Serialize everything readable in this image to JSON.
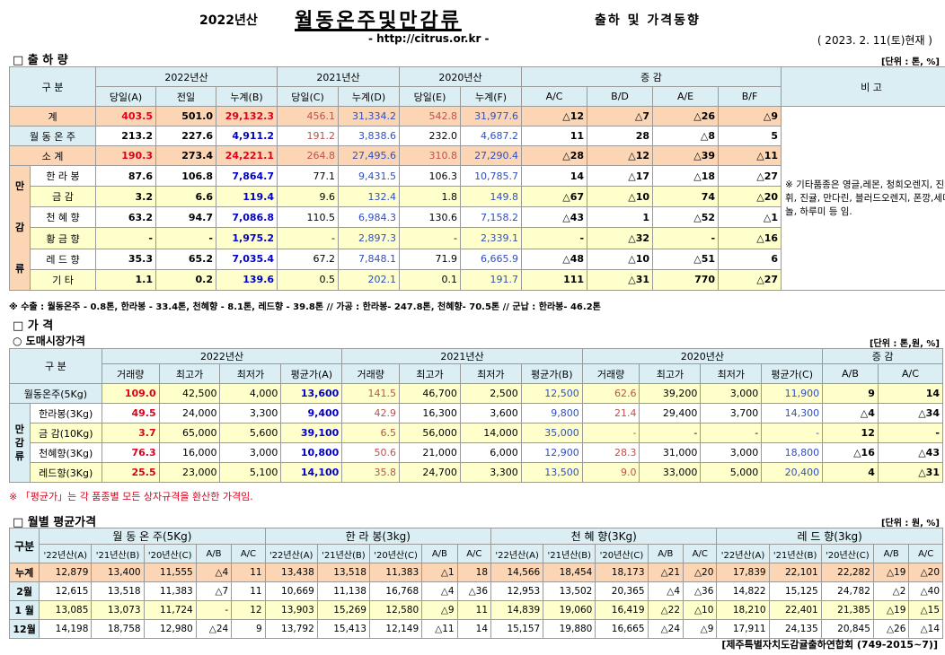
{
  "header": {
    "year": "2022년산",
    "title": "월동온주및만감류",
    "subtitle": "출하 및 가격동향",
    "url": "- http://citrus.or.kr -",
    "date": "( 2023. 2. 11(토)현재 )"
  },
  "shipment": {
    "section": "□ 출 하 량",
    "unit": "[단위 : 톤, %]",
    "div_label": "구   분",
    "h2022": "2022년산",
    "h2021": "2021년산",
    "h2020": "2020년산",
    "hinc": "증     감",
    "hnote": "비 고",
    "cols": [
      "당일(A)",
      "전일",
      "누계(B)",
      "당일(C)",
      "누계(D)",
      "당일(E)",
      "누계(F)",
      "A/C",
      "B/D",
      "A/E",
      "B/F"
    ],
    "total": {
      "label": "계",
      "v": [
        "403.5",
        "501.0",
        "29,132.3",
        "456.1",
        "31,334.2",
        "542.8",
        "31,977.6",
        "△12",
        "△7",
        "△26",
        "△9"
      ]
    },
    "winter": {
      "label": "월 동 온 주",
      "v": [
        "213.2",
        "227.6",
        "4,911.2",
        "191.2",
        "3,838.6",
        "232.0",
        "4,687.2",
        "11",
        "28",
        "△8",
        "5"
      ]
    },
    "subtotal": {
      "label": "소    계",
      "v": [
        "190.3",
        "273.4",
        "24,221.1",
        "264.8",
        "27,495.6",
        "310.8",
        "27,290.4",
        "△28",
        "△12",
        "△39",
        "△11"
      ]
    },
    "side_label": [
      "만",
      "감",
      "류"
    ],
    "rows": [
      {
        "label": "한 라 봉",
        "v": [
          "87.6",
          "106.8",
          "7,864.7",
          "77.1",
          "9,431.5",
          "106.3",
          "10,785.7",
          "14",
          "△17",
          "△18",
          "△27"
        ]
      },
      {
        "label": "금    감",
        "v": [
          "3.2",
          "6.6",
          "119.4",
          "9.6",
          "132.4",
          "1.8",
          "149.8",
          "△67",
          "△10",
          "74",
          "△20"
        ]
      },
      {
        "label": "천 혜 향",
        "v": [
          "63.2",
          "94.7",
          "7,086.8",
          "110.5",
          "6,984.3",
          "130.6",
          "7,158.2",
          "△43",
          "1",
          "△52",
          "△1"
        ]
      },
      {
        "label": "황 금 향",
        "v": [
          "-",
          "-",
          "1,975.2",
          "-",
          "2,897.3",
          "-",
          "2,339.1",
          "-",
          "△32",
          "-",
          "△16"
        ]
      },
      {
        "label": "레 드 향",
        "v": [
          "35.3",
          "65.2",
          "7,035.4",
          "67.2",
          "7,848.1",
          "71.9",
          "6,665.9",
          "△48",
          "△10",
          "△51",
          "6"
        ]
      },
      {
        "label": "기    타",
        "v": [
          "1.1",
          "0.2",
          "139.6",
          "0.5",
          "202.1",
          "0.1",
          "191.7",
          "111",
          "△31",
          "770",
          "△27"
        ]
      }
    ],
    "remark": "※ 기타품종은 영글,레몬, 청희오렌지, 진지휘, 진귤, 만다린, 블러드오렌지, 폰깡,세미놀, 하루미 등 임.",
    "note": "※ 수출 : 월동온주 - 0.8톤, 한라봉 - 33.4톤, 천혜향 - 8.1톤, 레드향 - 39.8톤  //  가공  :  한라봉- 247.8톤, 천혜향- 70.5톤  //  군납 : 한라봉- 46.2톤"
  },
  "price": {
    "section": "□ 가     격",
    "sub": "○ 도매시장가격",
    "unit": "[단위 : 톤,원, %]",
    "div_label": "구     분",
    "h2022": "2022년산",
    "h2021": "2021년산",
    "h2020": "2020년산",
    "hinc": "증     감",
    "cols": [
      "거래량",
      "최고가",
      "최저가",
      "평균가(A)",
      "거래량",
      "최고가",
      "최저가",
      "평균가(B)",
      "거래량",
      "최고가",
      "최저가",
      "평균가(C)",
      "A/B",
      "A/C"
    ],
    "winter": {
      "label": "월동온주(5Kg)",
      "v": [
        "109.0",
        "42,500",
        "4,000",
        "13,600",
        "141.5",
        "46,700",
        "2,500",
        "12,500",
        "62.6",
        "39,200",
        "3,000",
        "11,900",
        "9",
        "14"
      ]
    },
    "side_label": [
      "만",
      "감",
      "류"
    ],
    "rows": [
      {
        "label": "한라봉(3Kg)",
        "v": [
          "49.5",
          "24,000",
          "3,300",
          "9,400",
          "42.9",
          "16,300",
          "3,600",
          "9,800",
          "21.4",
          "29,400",
          "3,700",
          "14,300",
          "△4",
          "△34"
        ]
      },
      {
        "label": "금 감(10Kg)",
        "v": [
          "3.7",
          "65,000",
          "5,600",
          "39,100",
          "6.5",
          "56,000",
          "14,000",
          "35,000",
          "-",
          "-",
          "-",
          "-",
          "12",
          "-"
        ]
      },
      {
        "label": "천혜향(3Kg)",
        "v": [
          "76.3",
          "16,000",
          "3,000",
          "10,800",
          "50.6",
          "21,000",
          "6,000",
          "12,900",
          "28.3",
          "31,000",
          "3,000",
          "18,800",
          "△16",
          "△43"
        ]
      },
      {
        "label": "레드향(3Kg)",
        "v": [
          "25.5",
          "23,000",
          "5,100",
          "14,100",
          "35.8",
          "24,700",
          "3,300",
          "13,500",
          "9.0",
          "33,000",
          "5,000",
          "20,400",
          "4",
          "△31"
        ]
      }
    ],
    "note": "※ 「평균가」는 각 품종별 모든 상자규격을 환산한 가격임."
  },
  "monthly": {
    "section": "□ 월별 평균가격",
    "unit": "[단위 : 원, %]",
    "div_label": "구분",
    "groups": [
      "월 동 온 주(5Kg)",
      "한 라 봉(3kg)",
      "천 혜 향(3Kg)",
      "레 드 향(3kg)"
    ],
    "cols": [
      "'22년산(A)",
      "'21년산(B)",
      "'20년산(C)",
      "A/B",
      "A/C"
    ],
    "rows": [
      {
        "label": "누계",
        "v": [
          "12,879",
          "13,400",
          "11,555",
          "△4",
          "11",
          "13,438",
          "13,518",
          "11,383",
          "△1",
          "18",
          "14,566",
          "18,454",
          "18,173",
          "△21",
          "△20",
          "17,839",
          "22,101",
          "22,282",
          "△19",
          "△20"
        ]
      },
      {
        "label": "2월",
        "v": [
          "12,615",
          "13,518",
          "11,383",
          "△7",
          "11",
          "10,669",
          "11,138",
          "16,768",
          "△4",
          "△36",
          "12,953",
          "13,502",
          "20,365",
          "△4",
          "△36",
          "14,822",
          "15,125",
          "24,782",
          "△2",
          "△40"
        ]
      },
      {
        "label": "1 월",
        "v": [
          "13,085",
          "13,073",
          "11,724",
          "-",
          "12",
          "13,903",
          "15,269",
          "12,580",
          "△9",
          "11",
          "14,839",
          "19,060",
          "16,419",
          "△22",
          "△10",
          "18,210",
          "22,401",
          "21,385",
          "△19",
          "△15"
        ]
      },
      {
        "label": "12월",
        "v": [
          "14,198",
          "18,758",
          "12,980",
          "△24",
          "9",
          "13,792",
          "15,413",
          "12,149",
          "△11",
          "14",
          "15,157",
          "19,880",
          "16,665",
          "△24",
          "△9",
          "17,911",
          "24,135",
          "20,845",
          "△26",
          "△14"
        ]
      }
    ]
  },
  "footer": "[제주특별자치도감귤출하연합회 (749-2015~7)]"
}
